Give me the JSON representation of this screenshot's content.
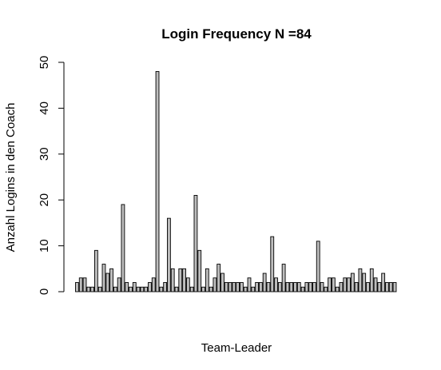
{
  "chart_data": {
    "type": "bar",
    "title": "Login Frequency N =84",
    "xlabel": "Team-Leader",
    "ylabel": "Anzahl Logins in den Coach",
    "ylim": [
      0,
      50
    ],
    "yticks": [
      0,
      10,
      20,
      30,
      40,
      50
    ],
    "grid": false,
    "bar_color": "#bebebe",
    "values": [
      2,
      3,
      3,
      1,
      1,
      9,
      1,
      6,
      4,
      5,
      1,
      3,
      19,
      2,
      1,
      2,
      1,
      1,
      1,
      2,
      3,
      48,
      1,
      2,
      16,
      5,
      1,
      5,
      5,
      3,
      1,
      21,
      9,
      1,
      5,
      1,
      3,
      6,
      4,
      2,
      2,
      2,
      2,
      2,
      1,
      3,
      1,
      2,
      2,
      4,
      2,
      12,
      3,
      2,
      6,
      2,
      2,
      2,
      2,
      1,
      2,
      2,
      2,
      11,
      2,
      1,
      3,
      3,
      1,
      2,
      3,
      3,
      4,
      2,
      5,
      4,
      2,
      5,
      3,
      2,
      4,
      2,
      2,
      2
    ]
  }
}
